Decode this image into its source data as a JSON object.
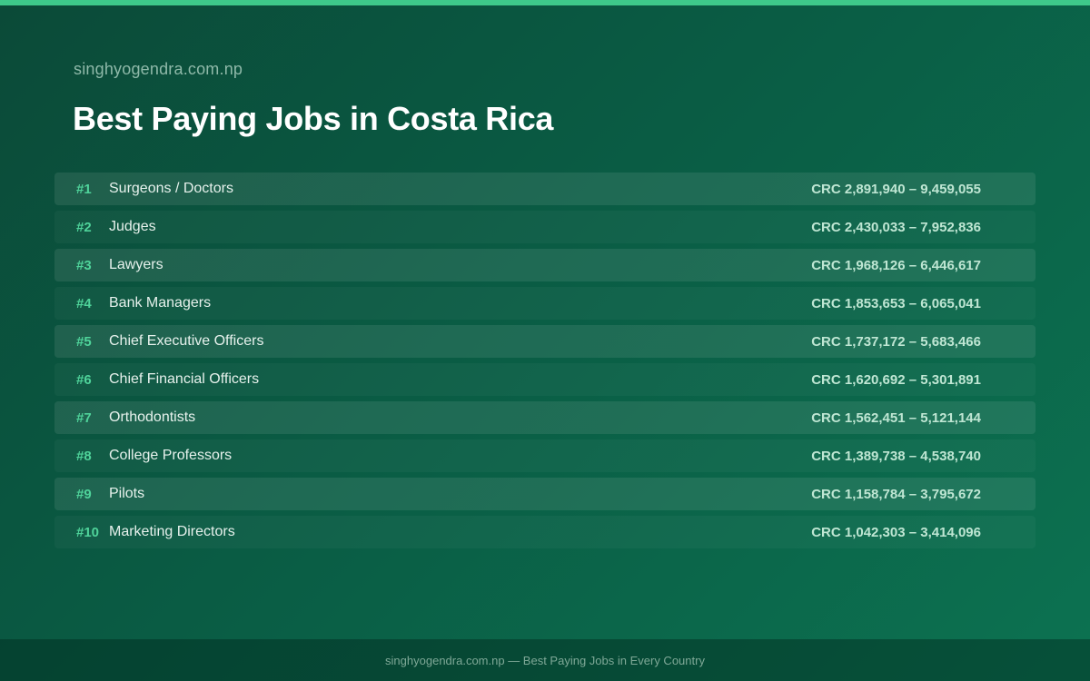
{
  "site_name": "singhyogendra.com.np",
  "title": "Best Paying Jobs in Costa Rica",
  "jobs": [
    {
      "rank": "#1",
      "name": "Surgeons / Doctors",
      "salary": "CRC 2,891,940 – 9,459,055"
    },
    {
      "rank": "#2",
      "name": "Judges",
      "salary": "CRC 2,430,033 – 7,952,836"
    },
    {
      "rank": "#3",
      "name": "Lawyers",
      "salary": "CRC 1,968,126 – 6,446,617"
    },
    {
      "rank": "#4",
      "name": "Bank Managers",
      "salary": "CRC 1,853,653 – 6,065,041"
    },
    {
      "rank": "#5",
      "name": "Chief Executive Officers",
      "salary": "CRC 1,737,172 – 5,683,466"
    },
    {
      "rank": "#6",
      "name": "Chief Financial Officers",
      "salary": "CRC 1,620,692 – 5,301,891"
    },
    {
      "rank": "#7",
      "name": "Orthodontists",
      "salary": "CRC 1,562,451 – 5,121,144"
    },
    {
      "rank": "#8",
      "name": "College Professors",
      "salary": "CRC 1,389,738 – 4,538,740"
    },
    {
      "rank": "#9",
      "name": "Pilots",
      "salary": "CRC 1,158,784 – 3,795,672"
    },
    {
      "rank": "#10",
      "name": "Marketing Directors",
      "salary": "CRC 1,042,303 – 3,414,096"
    }
  ],
  "footer": "singhyogendra.com.np — Best Paying Jobs in Every Country",
  "colors": {
    "accent": "#3ec98a",
    "rank": "#4fd39a",
    "background": "#0a5c44"
  }
}
